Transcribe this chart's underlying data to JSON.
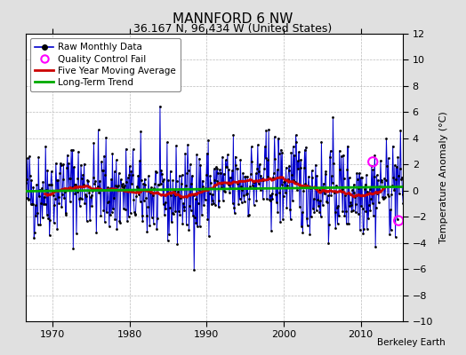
{
  "title": "MANNFORD 6 NW",
  "subtitle": "36.167 N, 96.434 W (United States)",
  "ylabel": "Temperature Anomaly (°C)",
  "credit": "Berkeley Earth",
  "ylim": [
    -10,
    12
  ],
  "yticks": [
    -10,
    -8,
    -6,
    -4,
    -2,
    0,
    2,
    4,
    6,
    8,
    10,
    12
  ],
  "xlim": [
    1966.5,
    2015.5
  ],
  "xticks": [
    1970,
    1980,
    1990,
    2000,
    2010
  ],
  "start_year": 1966.5,
  "bg_color": "#e0e0e0",
  "plot_bg_color": "#ffffff",
  "raw_line_color": "#0000cc",
  "raw_dot_color": "#000000",
  "moving_avg_color": "#cc0000",
  "trend_color": "#00aa00",
  "qc_fail_color": "#ff00ff",
  "seed": 42,
  "n_months": 588,
  "qc_fail_indices": [
    540,
    580
  ],
  "qc_fail_values": [
    2.2,
    -2.3
  ],
  "title_fontsize": 11,
  "subtitle_fontsize": 9,
  "tick_fontsize": 8,
  "ylabel_fontsize": 8
}
